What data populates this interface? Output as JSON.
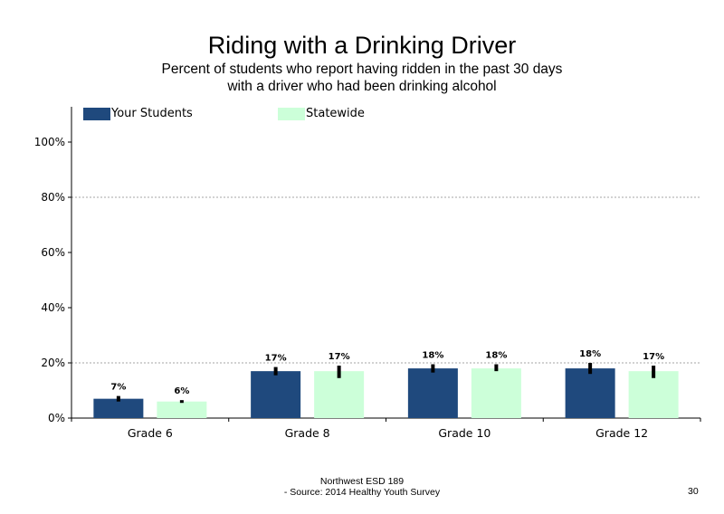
{
  "slide": {
    "title": "Riding with a Drinking Driver",
    "subtitle": "Percent of students  who report having ridden in the past 30 days with a driver who had been drinking alcohol",
    "footer_line1": "Northwest ESD  189",
    "footer_line2": "- Source: 2014 Healthy  Youth Survey",
    "page_number": "30"
  },
  "colors": {
    "your_students": "#1f497d",
    "statewide": "#ccffd9",
    "grid": "#a6a6a6",
    "error_bar": "#000000"
  },
  "chart_data": {
    "type": "bar",
    "title": "",
    "xlabel": "",
    "ylabel": "",
    "categories": [
      "Grade 6",
      "Grade 8",
      "Grade 10",
      "Grade 12"
    ],
    "ylim": [
      0,
      100
    ],
    "yticks": [
      0,
      20,
      40,
      60,
      80,
      100
    ],
    "ytick_labels": [
      "0%",
      "20%",
      "40%",
      "60%",
      "80%",
      "100%"
    ],
    "gridlines": [
      20,
      80
    ],
    "grid_style": "dotted",
    "legend_position": "top-left",
    "series": [
      {
        "name": "Your Students",
        "values": [
          7,
          17,
          18,
          18
        ],
        "labels": [
          "7%",
          "17%",
          "18%",
          "18%"
        ],
        "error": [
          [
            6,
            8
          ],
          [
            15.5,
            18.5
          ],
          [
            16.5,
            19.5
          ],
          [
            16,
            20
          ]
        ]
      },
      {
        "name": "Statewide",
        "values": [
          6,
          17,
          18,
          17
        ],
        "labels": [
          "6%",
          "17%",
          "18%",
          "17%"
        ],
        "error": [
          [
            5.5,
            6.5
          ],
          [
            14.5,
            19
          ],
          [
            17,
            19.5
          ],
          [
            14.5,
            19
          ]
        ]
      }
    ]
  }
}
